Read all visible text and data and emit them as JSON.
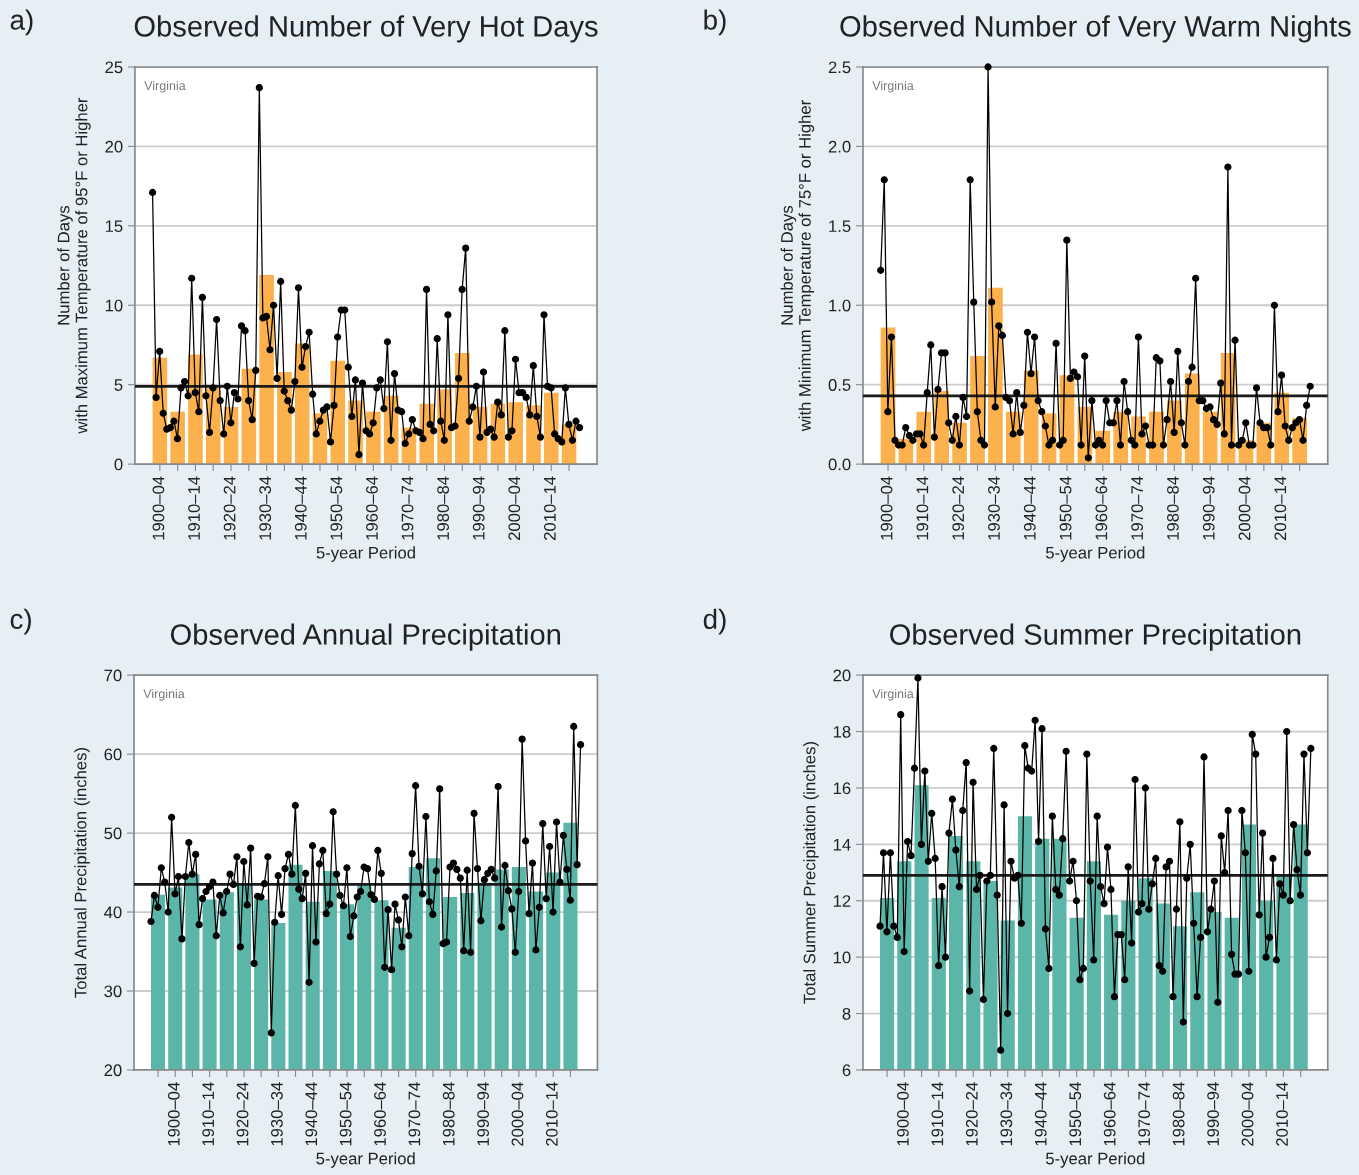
{
  "chart_data": [
    {
      "type": "bar",
      "title": "Observed Number of Very Hot Days",
      "xlabel": "5-year Period",
      "ylabel": "Number of Days\nwith Maximum Temperature of 95°F or Higher",
      "annotations": [
        "a)",
        "Virginia"
      ],
      "ylim": [
        0,
        25
      ],
      "yticks": [
        0,
        5,
        10,
        15,
        20,
        25
      ],
      "categories": [
        "1900–04",
        null,
        "1910–14",
        null,
        "1920–24",
        null,
        "1930–34",
        null,
        "1940–44",
        null,
        "1950–54",
        null,
        "1960–64",
        null,
        "1970–74",
        null,
        "1980–84",
        null,
        "1990–94",
        null,
        "2000–04",
        null,
        "2010–14",
        null
      ],
      "grid": "y",
      "ref_lines": [
        {
          "axis": "y",
          "value": 4.9,
          "color": "#1a1a1a"
        }
      ],
      "series": [
        {
          "color": "#fdb14c",
          "values": [
            6.7,
            3.3,
            6.9,
            4.8,
            3.6,
            6.0,
            11.9,
            5.8,
            7.6,
            3.2,
            6.5,
            4.0,
            3.3,
            4.3,
            2.3,
            3.8,
            4.7,
            7.0,
            3.6,
            3.8,
            3.9,
            3.7,
            4.5,
            2.5
          ]
        }
      ]
    },
    {
      "type": "line",
      "ylim": [
        0,
        25
      ],
      "yticks": [
        0,
        5,
        10,
        15,
        20,
        25
      ],
      "tick_labels": false,
      "marker": "circle",
      "categories": [
        null,
        null,
        null,
        null,
        null,
        null,
        null,
        null,
        null,
        null,
        null,
        null,
        null,
        null,
        null,
        null,
        null,
        null,
        null,
        null,
        null,
        null,
        null,
        null,
        null,
        null,
        null,
        null,
        null,
        null,
        null,
        null,
        null,
        null,
        null,
        null,
        null,
        null,
        null,
        null,
        null,
        null,
        null,
        null,
        null,
        null,
        null,
        null,
        null,
        null,
        null,
        null,
        null,
        null,
        null,
        null,
        null,
        null,
        null,
        null,
        null,
        null,
        null,
        null,
        null,
        null,
        null,
        null,
        null,
        null,
        null,
        null,
        null,
        null,
        null,
        null,
        null,
        null,
        null,
        null,
        null,
        null,
        null,
        null,
        null,
        null,
        null,
        null,
        null,
        null,
        null,
        null,
        null,
        null,
        null,
        null,
        null,
        null,
        null,
        null,
        null,
        null,
        null,
        null,
        null,
        null,
        null,
        null,
        null,
        null,
        null,
        null,
        null,
        null,
        null,
        null,
        null,
        null,
        null,
        null,
        null
      ],
      "series": [
        {
          "color": "#000000",
          "values": [
            17.1,
            4.2,
            7.1,
            3.2,
            2.2,
            2.3,
            2.7,
            1.6,
            4.8,
            5.2,
            4.3,
            11.7,
            4.5,
            3.3,
            10.5,
            4.3,
            2.0,
            4.8,
            9.1,
            4.0,
            1.9,
            4.9,
            2.6,
            4.5,
            4.1,
            8.7,
            8.4,
            4.0,
            2.8,
            5.9,
            23.7,
            9.2,
            9.3,
            7.2,
            10.0,
            5.4,
            11.5,
            4.6,
            4.0,
            3.4,
            5.2,
            11.1,
            6.1,
            7.4,
            8.3,
            4.4,
            1.9,
            2.7,
            3.4,
            3.6,
            1.4,
            3.7,
            8.0,
            9.7,
            9.7,
            6.1,
            3.0,
            5.3,
            0.6,
            5.1,
            2.1,
            1.9,
            2.6,
            4.8,
            5.3,
            3.5,
            7.7,
            1.5,
            5.7,
            3.4,
            3.3,
            1.3,
            1.9,
            2.8,
            2.1,
            2.0,
            1.6,
            11.0,
            2.5,
            2.1,
            7.9,
            2.7,
            1.5,
            9.4,
            2.3,
            2.4,
            5.4,
            11.0,
            13.6,
            2.7,
            3.6,
            4.9,
            1.7,
            5.8,
            2.0,
            2.2,
            1.7,
            3.9,
            3.1,
            8.4,
            1.7,
            2.1,
            6.6,
            4.5,
            4.5,
            4.2,
            3.1,
            6.2,
            3.0,
            1.7,
            9.4,
            4.9,
            4.8,
            1.9,
            1.6,
            1.4,
            4.8,
            2.5,
            1.5,
            2.7,
            2.3
          ]
        }
      ]
    },
    {
      "type": "bar",
      "title": "Observed Number of Very Warm Nights",
      "xlabel": "5-year Period",
      "ylabel": "Number of Days\nwith Minimum Temperature of 75°F or Higher",
      "annotations": [
        "b)",
        "Virginia"
      ],
      "ylim": [
        0,
        2.5
      ],
      "yticks": [
        {
          "value": 0,
          "label": "0.0"
        },
        {
          "value": 0.5,
          "label": "0.5"
        },
        {
          "value": 1,
          "label": "1.0"
        },
        {
          "value": 1.5,
          "label": "1.5"
        },
        {
          "value": 2,
          "label": "2.0"
        },
        {
          "value": 2.5,
          "label": "2.5"
        }
      ],
      "categories": [
        "1900–04",
        null,
        "1910–14",
        null,
        "1920–24",
        null,
        "1930–34",
        null,
        "1940–44",
        null,
        "1950–54",
        null,
        "1960–64",
        null,
        "1970–74",
        null,
        "1980–84",
        null,
        "1990–94",
        null,
        "2000–04",
        null,
        "2010–14",
        null
      ],
      "grid": "y",
      "ref_lines": [
        {
          "axis": "y",
          "value": 0.43,
          "color": "#1a1a1a"
        }
      ],
      "series": [
        {
          "color": "#fdb14c",
          "values": [
            0.86,
            0.16,
            0.33,
            0.46,
            0.26,
            0.68,
            1.11,
            0.33,
            0.59,
            0.32,
            0.56,
            0.36,
            0.21,
            0.33,
            0.3,
            0.33,
            0.4,
            0.57,
            0.33,
            0.7,
            0.15,
            0.26,
            0.45,
            0.29
          ]
        }
      ]
    },
    {
      "type": "line",
      "ylim": [
        0,
        2.5
      ],
      "yticks": [
        0,
        0.5,
        1,
        1.5,
        2,
        2.5
      ],
      "tick_labels": false,
      "marker": "circle",
      "categories": [
        null,
        null,
        null,
        null,
        null,
        null,
        null,
        null,
        null,
        null,
        null,
        null,
        null,
        null,
        null,
        null,
        null,
        null,
        null,
        null,
        null,
        null,
        null,
        null,
        null,
        null,
        null,
        null,
        null,
        null,
        null,
        null,
        null,
        null,
        null,
        null,
        null,
        null,
        null,
        null,
        null,
        null,
        null,
        null,
        null,
        null,
        null,
        null,
        null,
        null,
        null,
        null,
        null,
        null,
        null,
        null,
        null,
        null,
        null,
        null,
        null,
        null,
        null,
        null,
        null,
        null,
        null,
        null,
        null,
        null,
        null,
        null,
        null,
        null,
        null,
        null,
        null,
        null,
        null,
        null,
        null,
        null,
        null,
        null,
        null,
        null,
        null,
        null,
        null,
        null,
        null,
        null,
        null,
        null,
        null,
        null,
        null,
        null,
        null,
        null,
        null,
        null,
        null,
        null,
        null,
        null,
        null,
        null,
        null,
        null,
        null,
        null,
        null,
        null,
        null,
        null,
        null,
        null,
        null,
        null,
        null
      ],
      "series": [
        {
          "color": "#000000",
          "values": [
            1.22,
            1.79,
            0.33,
            0.8,
            0.15,
            0.12,
            0.12,
            0.23,
            0.18,
            0.15,
            0.19,
            0.19,
            0.12,
            0.45,
            0.75,
            0.17,
            0.47,
            0.7,
            0.7,
            0.26,
            0.15,
            0.3,
            0.12,
            0.42,
            0.3,
            1.79,
            1.02,
            0.33,
            0.15,
            0.12,
            2.5,
            1.02,
            0.36,
            0.87,
            0.81,
            0.42,
            0.4,
            0.19,
            0.45,
            0.2,
            0.37,
            0.83,
            0.57,
            0.8,
            0.4,
            0.33,
            0.24,
            0.12,
            0.15,
            0.76,
            0.12,
            0.15,
            1.41,
            0.54,
            0.58,
            0.55,
            0.12,
            0.68,
            0.04,
            0.4,
            0.12,
            0.15,
            0.12,
            0.4,
            0.26,
            0.26,
            0.4,
            0.12,
            0.52,
            0.33,
            0.15,
            0.12,
            0.8,
            0.19,
            0.24,
            0.12,
            0.12,
            0.67,
            0.65,
            0.12,
            0.28,
            0.52,
            0.2,
            0.71,
            0.26,
            0.12,
            0.52,
            0.61,
            1.17,
            0.4,
            0.4,
            0.35,
            0.36,
            0.28,
            0.25,
            0.51,
            0.19,
            1.87,
            0.12,
            0.78,
            0.12,
            0.15,
            0.26,
            0.12,
            0.12,
            0.48,
            0.26,
            0.23,
            0.23,
            0.12,
            1.0,
            0.33,
            0.56,
            0.24,
            0.15,
            0.23,
            0.26,
            0.28,
            0.15,
            0.37,
            0.49
          ]
        }
      ]
    },
    {
      "type": "bar",
      "title": "Observed Annual Precipitation",
      "xlabel": "5-year Period",
      "ylabel": "Total Annual Precipitation (inches)",
      "annotations": [
        "c)",
        "Virginia"
      ],
      "ylim": [
        20,
        70
      ],
      "yticks": [
        20,
        30,
        40,
        50,
        60,
        70
      ],
      "categories": [
        null,
        "1900–04",
        null,
        "1910–14",
        null,
        "1920–24",
        null,
        "1930–34",
        null,
        "1940–44",
        null,
        "1950–54",
        null,
        "1960–64",
        null,
        "1970–74",
        null,
        "1980–84",
        null,
        "1990–94",
        null,
        "2000–04",
        null,
        "2010–14",
        null
      ],
      "grid": "y",
      "ref_lines": [
        {
          "axis": "y",
          "value": 43.5,
          "color": "#1a1a1a"
        }
      ],
      "series": [
        {
          "color": "#5bb5a9",
          "values": [
            42.2,
            43.1,
            44.8,
            41.6,
            42.5,
            43.6,
            41.6,
            38.6,
            46.0,
            41.3,
            45.2,
            41.0,
            43.6,
            41.5,
            38.0,
            45.7,
            46.8,
            41.9,
            42.4,
            43.7,
            45.4,
            45.7,
            42.6,
            45.0,
            51.3
          ]
        }
      ]
    },
    {
      "type": "line",
      "ylim": [
        20,
        70
      ],
      "yticks": [
        20,
        30,
        40,
        50,
        60,
        70
      ],
      "tick_labels": false,
      "marker": "circle",
      "categories": [
        null,
        null,
        null,
        null,
        null,
        null,
        null,
        null,
        null,
        null,
        null,
        null,
        null,
        null,
        null,
        null,
        null,
        null,
        null,
        null,
        null,
        null,
        null,
        null,
        null,
        null,
        null,
        null,
        null,
        null,
        null,
        null,
        null,
        null,
        null,
        null,
        null,
        null,
        null,
        null,
        null,
        null,
        null,
        null,
        null,
        null,
        null,
        null,
        null,
        null,
        null,
        null,
        null,
        null,
        null,
        null,
        null,
        null,
        null,
        null,
        null,
        null,
        null,
        null,
        null,
        null,
        null,
        null,
        null,
        null,
        null,
        null,
        null,
        null,
        null,
        null,
        null,
        null,
        null,
        null,
        null,
        null,
        null,
        null,
        null,
        null,
        null,
        null,
        null,
        null,
        null,
        null,
        null,
        null,
        null,
        null,
        null,
        null,
        null,
        null,
        null,
        null,
        null,
        null,
        null,
        null,
        null,
        null,
        null,
        null,
        null,
        null,
        null,
        null,
        null,
        null,
        null,
        null,
        null,
        null,
        null,
        null,
        null,
        null,
        null,
        null
      ],
      "series": [
        {
          "color": "#000000",
          "values": [
            38.8,
            42.1,
            40.6,
            45.6,
            43.8,
            40.0,
            52.0,
            42.3,
            44.5,
            36.6,
            44.5,
            48.8,
            44.8,
            47.3,
            38.4,
            41.7,
            42.6,
            43.2,
            43.8,
            37.0,
            42.1,
            39.9,
            42.6,
            44.8,
            43.5,
            47.0,
            35.6,
            46.4,
            40.9,
            48.1,
            33.5,
            42.0,
            41.9,
            43.6,
            47.0,
            24.7,
            38.7,
            44.6,
            39.7,
            45.5,
            47.3,
            44.8,
            53.5,
            42.9,
            41.7,
            44.9,
            31.1,
            48.4,
            36.2,
            46.1,
            47.8,
            39.8,
            41.0,
            52.7,
            44.8,
            42.1,
            40.8,
            45.6,
            36.9,
            39.5,
            41.9,
            42.6,
            45.7,
            45.5,
            42.2,
            41.6,
            47.8,
            44.9,
            33.0,
            40.3,
            32.7,
            41.0,
            39.0,
            35.6,
            41.9,
            37.0,
            47.4,
            56.0,
            45.8,
            42.3,
            52.1,
            41.3,
            39.7,
            45.2,
            55.6,
            36.0,
            36.2,
            45.7,
            46.2,
            45.4,
            44.3,
            35.1,
            45.3,
            34.9,
            52.5,
            45.5,
            38.9,
            44.1,
            44.9,
            45.4,
            44.3,
            55.9,
            38.1,
            45.9,
            42.7,
            40.4,
            34.9,
            42.6,
            61.9,
            49.0,
            39.8,
            46.2,
            35.2,
            40.6,
            51.2,
            41.7,
            48.3,
            40.0,
            51.4,
            43.8,
            49.7,
            45.4,
            41.5,
            63.5,
            46.0,
            61.2
          ]
        }
      ]
    },
    {
      "type": "bar",
      "title": "Observed Summer Precipitation",
      "xlabel": "5-year Period",
      "ylabel": "Total Summer Precipitation (inches)",
      "annotations": [
        "d)",
        "Virginia"
      ],
      "ylim": [
        6,
        20
      ],
      "yticks": [
        6,
        8,
        10,
        12,
        14,
        16,
        18,
        20
      ],
      "categories": [
        null,
        "1900–04",
        null,
        "1910–14",
        null,
        "1920–24",
        null,
        "1930–34",
        null,
        "1940–44",
        null,
        "1950–54",
        null,
        "1960–64",
        null,
        "1970–74",
        null,
        "1980–84",
        null,
        "1990–94",
        null,
        "2000–04",
        null,
        "2010–14",
        null
      ],
      "grid": "y",
      "ref_lines": [
        {
          "axis": "y",
          "value": 12.9,
          "color": "#1a1a1a"
        }
      ],
      "series": [
        {
          "color": "#5bb5a9",
          "values": [
            12.1,
            13.4,
            16.1,
            12.1,
            14.3,
            13.4,
            12.7,
            11.3,
            15.0,
            14.2,
            14.2,
            11.4,
            13.4,
            11.5,
            12.0,
            12.8,
            11.9,
            11.1,
            12.3,
            11.6,
            11.4,
            14.7,
            12.0,
            12.9,
            14.7
          ]
        }
      ]
    },
    {
      "type": "line",
      "ylim": [
        6,
        20
      ],
      "yticks": [
        6,
        8,
        10,
        12,
        14,
        16,
        18,
        20
      ],
      "tick_labels": false,
      "marker": "circle",
      "categories": [
        null,
        null,
        null,
        null,
        null,
        null,
        null,
        null,
        null,
        null,
        null,
        null,
        null,
        null,
        null,
        null,
        null,
        null,
        null,
        null,
        null,
        null,
        null,
        null,
        null,
        null,
        null,
        null,
        null,
        null,
        null,
        null,
        null,
        null,
        null,
        null,
        null,
        null,
        null,
        null,
        null,
        null,
        null,
        null,
        null,
        null,
        null,
        null,
        null,
        null,
        null,
        null,
        null,
        null,
        null,
        null,
        null,
        null,
        null,
        null,
        null,
        null,
        null,
        null,
        null,
        null,
        null,
        null,
        null,
        null,
        null,
        null,
        null,
        null,
        null,
        null,
        null,
        null,
        null,
        null,
        null,
        null,
        null,
        null,
        null,
        null,
        null,
        null,
        null,
        null,
        null,
        null,
        null,
        null,
        null,
        null,
        null,
        null,
        null,
        null,
        null,
        null,
        null,
        null,
        null,
        null,
        null,
        null,
        null,
        null,
        null,
        null,
        null,
        null,
        null,
        null,
        null,
        null,
        null,
        null,
        null,
        null,
        null,
        null,
        null,
        null
      ],
      "series": [
        {
          "color": "#000000",
          "values": [
            11.1,
            13.7,
            10.9,
            13.7,
            11.1,
            10.7,
            18.6,
            10.2,
            14.1,
            13.6,
            16.7,
            19.9,
            14.0,
            16.6,
            13.4,
            15.1,
            13.5,
            9.7,
            12.5,
            10.0,
            14.4,
            15.6,
            13.8,
            12.5,
            15.2,
            16.9,
            8.8,
            16.2,
            12.4,
            12.9,
            8.5,
            12.7,
            12.9,
            17.4,
            12.2,
            6.7,
            15.4,
            8.0,
            13.4,
            12.8,
            12.9,
            11.2,
            17.5,
            16.7,
            16.6,
            18.4,
            14.1,
            18.1,
            11.0,
            9.6,
            15.0,
            12.4,
            12.2,
            14.2,
            17.3,
            12.7,
            13.4,
            12.0,
            9.2,
            9.6,
            17.2,
            12.7,
            9.9,
            15.0,
            12.5,
            11.9,
            13.9,
            12.4,
            8.6,
            10.8,
            10.8,
            9.2,
            13.2,
            10.5,
            16.3,
            11.6,
            11.9,
            16.0,
            11.7,
            12.6,
            13.5,
            9.7,
            9.5,
            13.2,
            13.4,
            8.6,
            11.7,
            14.8,
            7.7,
            12.8,
            14.0,
            11.2,
            8.6,
            10.7,
            17.1,
            10.9,
            11.7,
            12.7,
            8.4,
            14.3,
            13.0,
            15.2,
            10.1,
            9.4,
            9.4,
            15.2,
            13.7,
            9.5,
            17.9,
            17.2,
            11.5,
            14.4,
            10.0,
            10.7,
            13.5,
            9.9,
            12.6,
            12.2,
            18.0,
            12.0,
            14.7,
            13.1,
            12.2,
            17.2,
            13.7,
            17.4
          ]
        }
      ]
    }
  ]
}
